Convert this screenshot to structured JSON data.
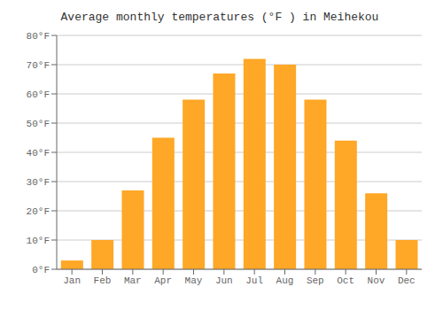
{
  "chart_data": {
    "type": "bar",
    "title": "Average monthly temperatures (°F ) in Meihekou",
    "categories": [
      "Jan",
      "Feb",
      "Mar",
      "Apr",
      "May",
      "Jun",
      "Jul",
      "Aug",
      "Sep",
      "Oct",
      "Nov",
      "Dec"
    ],
    "values": [
      3,
      10,
      27,
      45,
      58,
      67,
      72,
      70,
      58,
      44,
      26,
      10
    ],
    "color": "#FFA726",
    "ylim": [
      0,
      80
    ],
    "yticks": [
      {
        "value": 0,
        "label": "0°F"
      },
      {
        "value": 10,
        "label": "10°F"
      },
      {
        "value": 20,
        "label": "20°F"
      },
      {
        "value": 30,
        "label": "30°F"
      },
      {
        "value": 40,
        "label": "40°F"
      },
      {
        "value": 50,
        "label": "50°F"
      },
      {
        "value": 60,
        "label": "60°F"
      },
      {
        "value": 70,
        "label": "70°F"
      },
      {
        "value": 80,
        "label": "80°F"
      }
    ],
    "grid": true
  }
}
